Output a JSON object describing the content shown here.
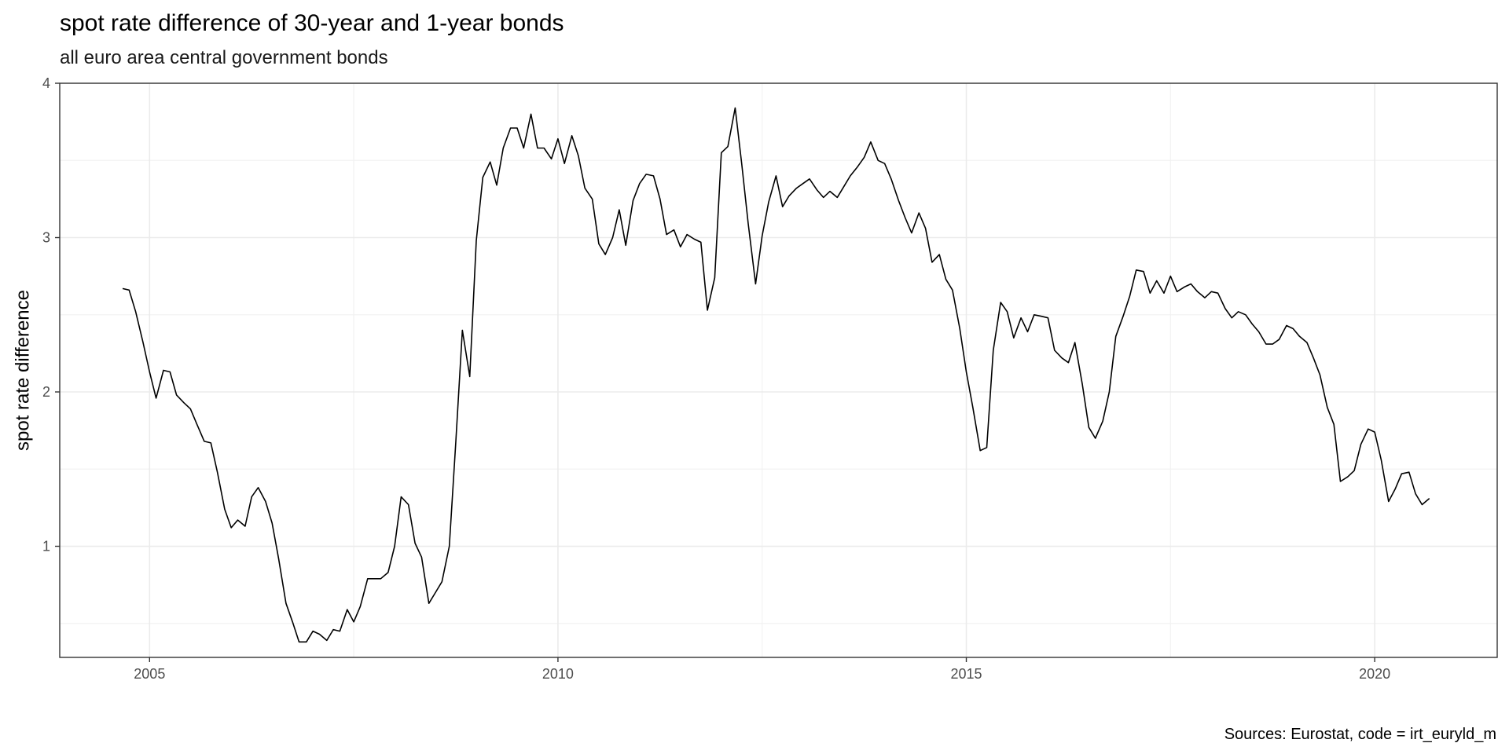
{
  "chart_data": {
    "type": "line",
    "title": "spot rate difference of 30-year and 1-year bonds",
    "subtitle": "all euro area central government bonds",
    "xlabel": "",
    "ylabel": "spot rate difference",
    "caption": "Sources: Eurostat, code = irt_euryld_m",
    "xlim": [
      2003.9,
      2021.5
    ],
    "ylim": [
      0.28,
      4.0
    ],
    "x_ticks": [
      2005,
      2010,
      2015,
      2020
    ],
    "x_tick_labels": [
      "2005",
      "2010",
      "2015",
      "2020"
    ],
    "y_ticks": [
      1,
      2,
      3,
      4
    ],
    "y_tick_labels": [
      "1",
      "2",
      "3",
      "4"
    ],
    "grid": true,
    "legend": "none",
    "line_color": "#000000",
    "series": [
      {
        "x": [
          2004.67,
          2004.75,
          2004.83,
          2004.92,
          2005.0,
          2005.08,
          2005.17,
          2005.25,
          2005.33,
          2005.42,
          2005.5,
          2005.58,
          2005.67,
          2005.75,
          2005.83,
          2005.92,
          2006.0,
          2006.08,
          2006.17,
          2006.25,
          2006.33,
          2006.42,
          2006.5,
          2006.58,
          2006.67,
          2006.75,
          2006.83,
          2006.92,
          2007.0,
          2007.08,
          2007.17,
          2007.25,
          2007.33,
          2007.42,
          2007.5,
          2007.58,
          2007.67,
          2007.75,
          2007.83,
          2007.92,
          2008.0,
          2008.08,
          2008.17,
          2008.25,
          2008.33,
          2008.42,
          2008.5,
          2008.58,
          2008.67,
          2008.75,
          2008.83,
          2008.92,
          2009.0,
          2009.08,
          2009.17,
          2009.25,
          2009.33,
          2009.42,
          2009.5,
          2009.58,
          2009.67,
          2009.75,
          2009.83,
          2009.92,
          2010.0,
          2010.08,
          2010.17,
          2010.25,
          2010.33,
          2010.42,
          2010.5,
          2010.58,
          2010.67,
          2010.75,
          2010.83,
          2010.92,
          2011.0,
          2011.08,
          2011.17,
          2011.25,
          2011.33,
          2011.42,
          2011.5,
          2011.58,
          2011.67,
          2011.75,
          2011.83,
          2011.92,
          2012.0,
          2012.08,
          2012.17,
          2012.25,
          2012.33,
          2012.42,
          2012.5,
          2012.58,
          2012.67,
          2012.75,
          2012.83,
          2012.92,
          2013.0,
          2013.08,
          2013.17,
          2013.25,
          2013.33,
          2013.42,
          2013.5,
          2013.58,
          2013.67,
          2013.75,
          2013.83,
          2013.92,
          2014.0,
          2014.08,
          2014.17,
          2014.25,
          2014.33,
          2014.42,
          2014.5,
          2014.58,
          2014.67,
          2014.75,
          2014.83,
          2014.92,
          2015.0,
          2015.08,
          2015.17,
          2015.25,
          2015.33,
          2015.42,
          2015.5,
          2015.58,
          2015.67,
          2015.75,
          2015.83,
          2015.92,
          2016.0,
          2016.08,
          2016.17,
          2016.25,
          2016.33,
          2016.42,
          2016.5,
          2016.58,
          2016.67,
          2016.75,
          2016.83,
          2016.92,
          2017.0,
          2017.08,
          2017.17,
          2017.25,
          2017.33,
          2017.42,
          2017.5,
          2017.58,
          2017.67,
          2017.75,
          2017.83,
          2017.92,
          2018.0,
          2018.08,
          2018.17,
          2018.25,
          2018.33,
          2018.42,
          2018.5,
          2018.58,
          2018.67,
          2018.75,
          2018.83,
          2018.92,
          2019.0,
          2019.08,
          2019.17,
          2019.25,
          2019.33,
          2019.42,
          2019.5,
          2019.58,
          2019.67,
          2019.75,
          2019.83,
          2019.92,
          2020.0,
          2020.08,
          2020.17,
          2020.25,
          2020.33,
          2020.42,
          2020.5,
          2020.58,
          2020.67
        ],
        "y": [
          2.67,
          2.66,
          2.52,
          2.32,
          2.13,
          1.96,
          2.14,
          2.13,
          1.98,
          1.93,
          1.89,
          1.79,
          1.68,
          1.67,
          1.48,
          1.24,
          1.12,
          1.17,
          1.13,
          1.32,
          1.38,
          1.29,
          1.15,
          0.92,
          0.63,
          0.51,
          0.38,
          0.38,
          0.45,
          0.43,
          0.39,
          0.46,
          0.45,
          0.59,
          0.51,
          0.61,
          0.79,
          0.79,
          0.79,
          0.83,
          1.0,
          1.32,
          1.27,
          1.02,
          0.93,
          0.63,
          0.7,
          0.77,
          1.0,
          1.68,
          2.4,
          2.1,
          2.98,
          3.39,
          3.49,
          3.34,
          3.58,
          3.71,
          3.71,
          3.58,
          3.8,
          3.58,
          3.58,
          3.51,
          3.64,
          3.48,
          3.66,
          3.53,
          3.32,
          3.25,
          2.96,
          2.89,
          3.0,
          3.18,
          2.95,
          3.24,
          3.35,
          3.41,
          3.4,
          3.25,
          3.02,
          3.05,
          2.94,
          3.02,
          2.99,
          2.97,
          2.53,
          2.74,
          3.55,
          3.59,
          3.84,
          3.48,
          3.09,
          2.7,
          3.01,
          3.23,
          3.4,
          3.2,
          3.27,
          3.32,
          3.35,
          3.38,
          3.31,
          3.26,
          3.3,
          3.26,
          3.33,
          3.4,
          3.46,
          3.52,
          3.62,
          3.5,
          3.48,
          3.38,
          3.24,
          3.13,
          3.03,
          3.16,
          3.06,
          2.84,
          2.89,
          2.73,
          2.66,
          2.41,
          2.13,
          1.9,
          1.62,
          1.64,
          2.27,
          2.58,
          2.52,
          2.35,
          2.48,
          2.39,
          2.5,
          2.49,
          2.48,
          2.27,
          2.22,
          2.19,
          2.32,
          2.05,
          1.77,
          1.7,
          1.81,
          2.0,
          2.36,
          2.49,
          2.62,
          2.79,
          2.78,
          2.64,
          2.72,
          2.64,
          2.75,
          2.65,
          2.68,
          2.7,
          2.65,
          2.61,
          2.65,
          2.64,
          2.54,
          2.48,
          2.52,
          2.5,
          2.44,
          2.39,
          2.31,
          2.31,
          2.34,
          2.43,
          2.41,
          2.36,
          2.32,
          2.22,
          2.11,
          1.9,
          1.79,
          1.42,
          1.45,
          1.49,
          1.66,
          1.76,
          1.74,
          1.56,
          1.29,
          1.37,
          1.47,
          1.48,
          1.34,
          1.27,
          1.31
        ]
      }
    ]
  }
}
